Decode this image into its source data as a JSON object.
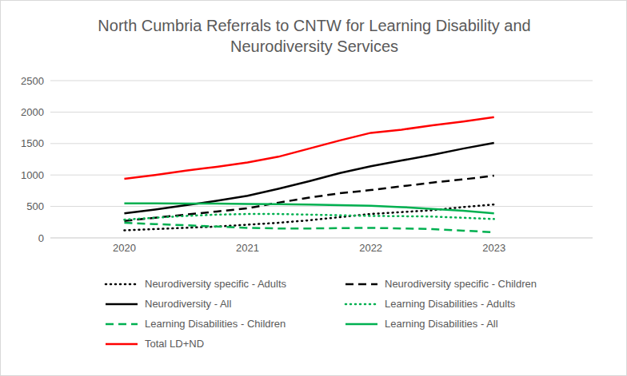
{
  "chart_data": {
    "type": "line",
    "title": "North Cumbria Referrals to CNTW for Learning Disability and Neurodiversity Services",
    "x": [
      2020,
      2020.25,
      2020.5,
      2020.75,
      2021,
      2021.25,
      2021.5,
      2021.75,
      2022,
      2022.25,
      2022.5,
      2022.75,
      2023
    ],
    "xlim": [
      2019.4,
      2023.8
    ],
    "xticks": [
      2020,
      2021,
      2022,
      2023
    ],
    "ylim": [
      0,
      2500
    ],
    "yticks": [
      0,
      500,
      1000,
      1500,
      2000,
      2500
    ],
    "grid": true,
    "legend": "bottom",
    "series": [
      {
        "name": "Neurodiversity specific - Adults",
        "color": "#000000",
        "line_style": "dotted",
        "values": [
          120,
          140,
          160,
          180,
          210,
          240,
          280,
          330,
          380,
          410,
          440,
          490,
          530
        ]
      },
      {
        "name": "Neurodiversity specific - Children",
        "color": "#000000",
        "line_style": "dashed",
        "values": [
          270,
          320,
          370,
          420,
          470,
          560,
          640,
          710,
          760,
          820,
          880,
          930,
          990
        ]
      },
      {
        "name": "Neurodiversity - All",
        "color": "#000000",
        "line_style": "solid",
        "values": [
          390,
          450,
          520,
          590,
          670,
          780,
          900,
          1030,
          1140,
          1230,
          1320,
          1420,
          1510
        ]
      },
      {
        "name": "Learning Disabilities - Adults",
        "color": "#00b050",
        "line_style": "dotted",
        "values": [
          290,
          320,
          350,
          370,
          380,
          380,
          370,
          360,
          350,
          345,
          340,
          320,
          300
        ]
      },
      {
        "name": "Learning Disabilities - Children",
        "color": "#00b050",
        "line_style": "dashed",
        "values": [
          240,
          220,
          200,
          180,
          160,
          150,
          150,
          155,
          160,
          150,
          140,
          115,
          90
        ]
      },
      {
        "name": "Learning Disabilities - All",
        "color": "#00b050",
        "line_style": "solid",
        "values": [
          550,
          550,
          545,
          545,
          540,
          535,
          530,
          520,
          510,
          490,
          460,
          430,
          390
        ]
      },
      {
        "name": "Total LD+ND",
        "color": "#ff0000",
        "line_style": "solid",
        "values": [
          940,
          1000,
          1070,
          1130,
          1200,
          1290,
          1420,
          1550,
          1670,
          1720,
          1790,
          1850,
          1920
        ]
      }
    ]
  }
}
